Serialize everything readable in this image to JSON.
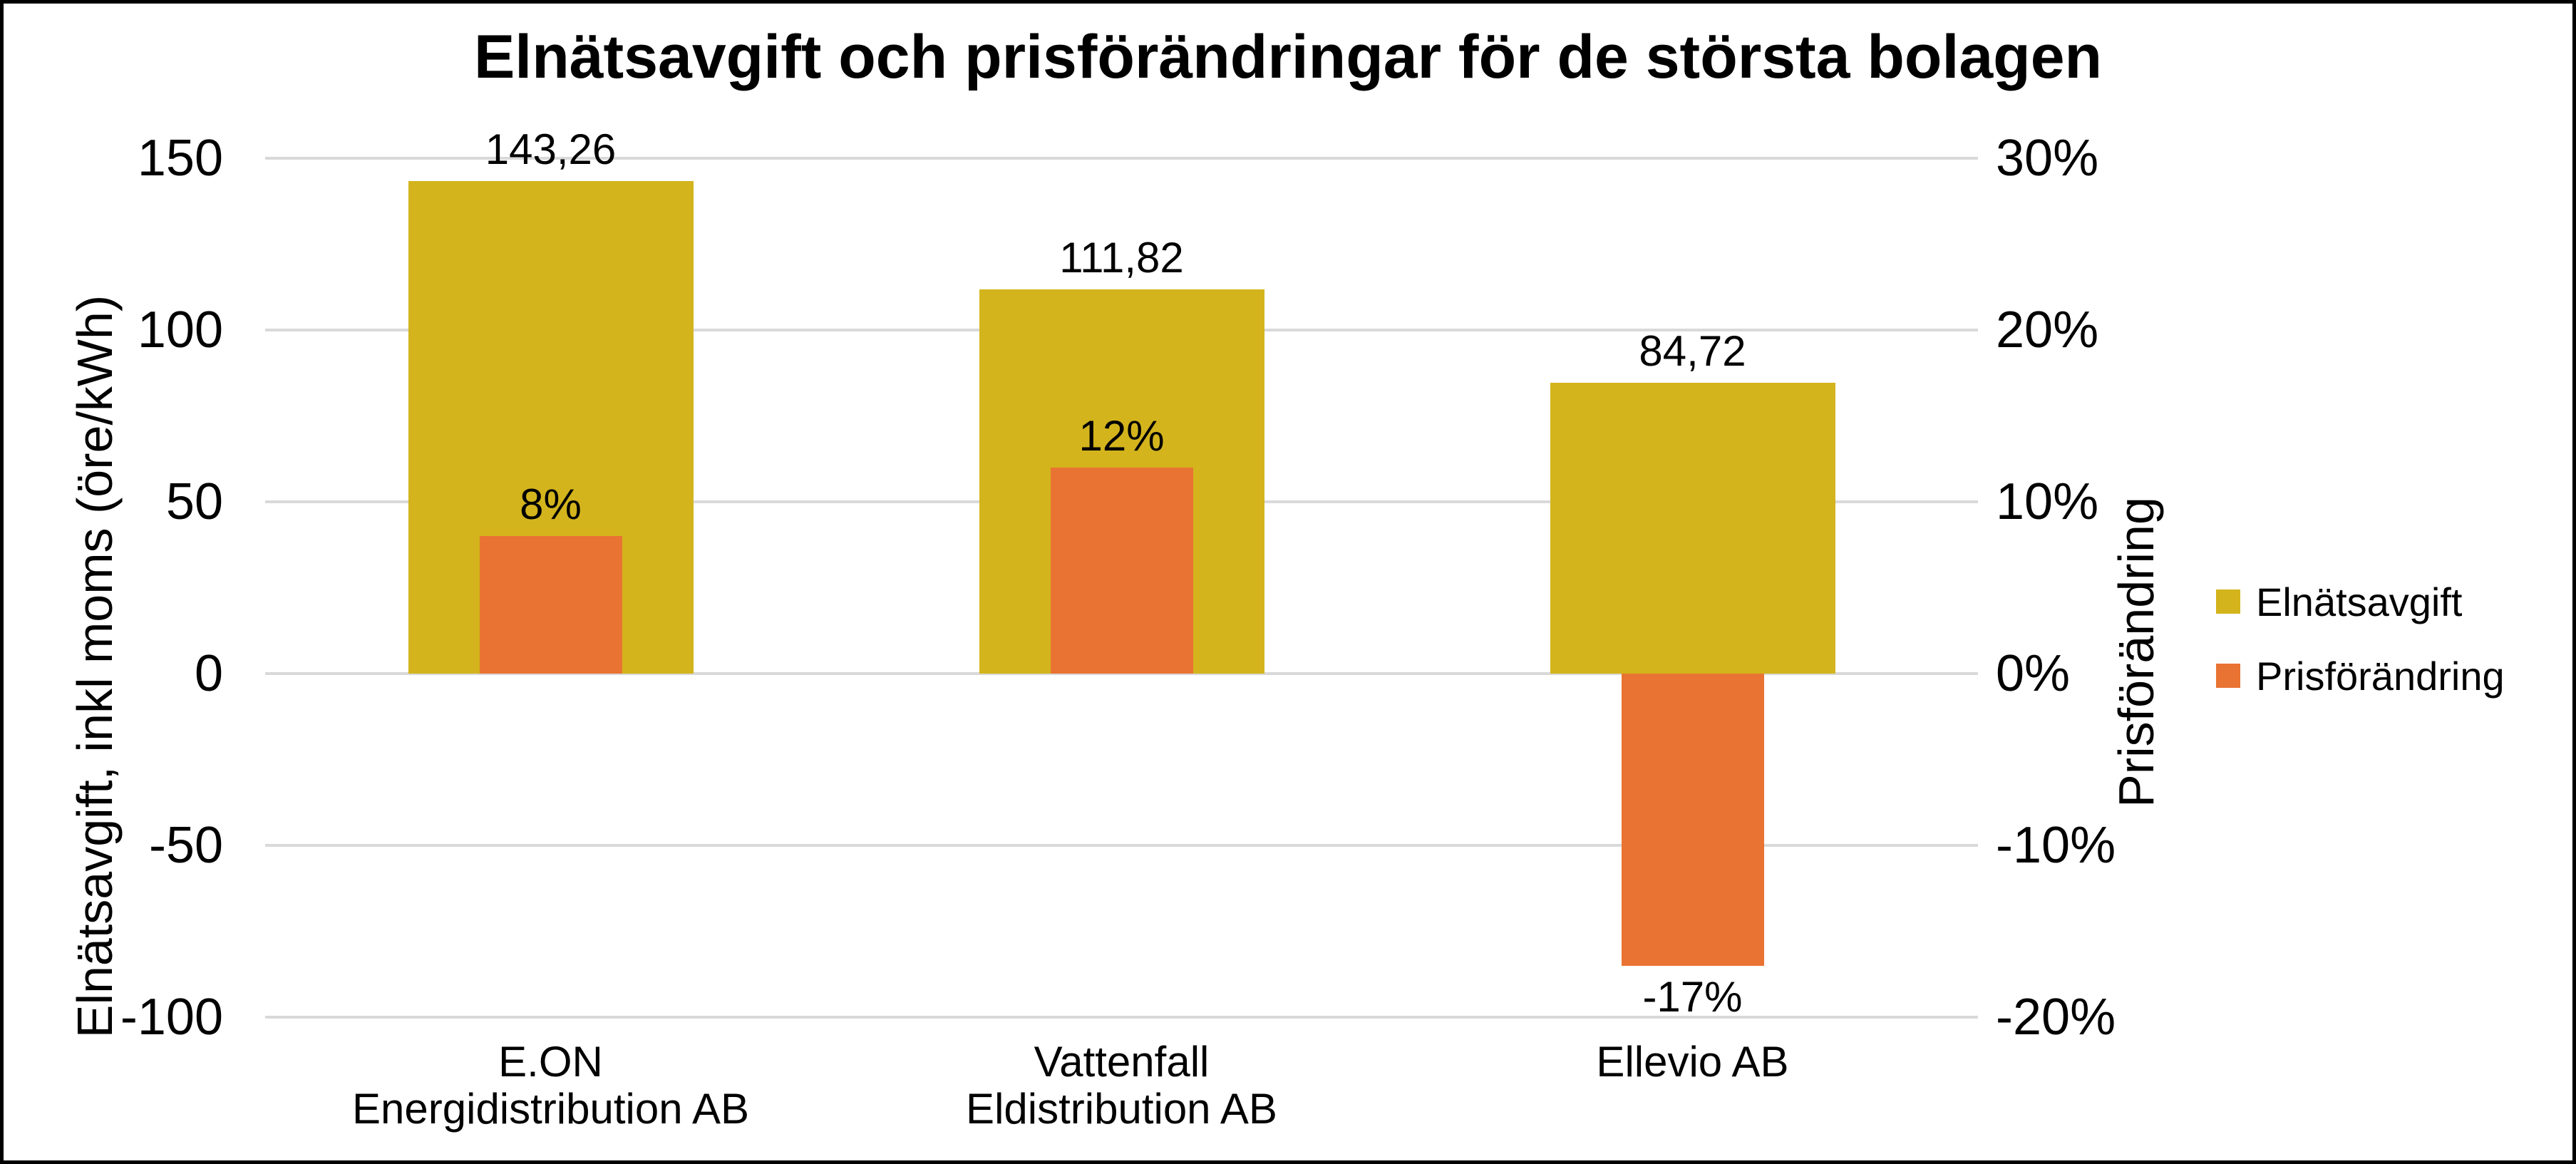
{
  "title": "Elnätsavgift och prisförändringar för de största bolagen",
  "left_axis": {
    "title": "Elnätsavgift, inkl moms (öre/kWh)",
    "ticks": [
      "150",
      "100",
      "50",
      "0",
      "-50",
      "-100"
    ],
    "max": 150,
    "min": -100
  },
  "right_axis": {
    "title": "Prisförändring",
    "ticks": [
      "30%",
      "20%",
      "10%",
      "0%",
      "-10%",
      "-20%"
    ],
    "max": 30,
    "min": -20
  },
  "legend": {
    "items": [
      {
        "label": "Elnätsavgift",
        "color": "#d3b41c"
      },
      {
        "label": "Prisförändring",
        "color": "#e97332"
      }
    ]
  },
  "colors": {
    "elnatsavgift": "#d3b41c",
    "prisforandring": "#e97332",
    "gridline": "#d9d9d9"
  },
  "chart_data": {
    "type": "bar",
    "title": "Elnätsavgift och prisförändringar för de största bolagen",
    "categories": [
      [
        "E.ON",
        "Energidistribution AB"
      ],
      [
        "Vattenfall",
        "Eldistribution AB"
      ],
      [
        "Ellevio AB"
      ]
    ],
    "series": [
      {
        "name": "Elnätsavgift",
        "axis": "left",
        "unit": "öre/kWh",
        "values": [
          143.26,
          111.82,
          84.72
        ],
        "labels": [
          "143,26",
          "111,82",
          "84,72"
        ],
        "color": "#d3b41c"
      },
      {
        "name": "Prisförändring",
        "axis": "right",
        "unit": "%",
        "values": [
          8,
          12,
          -17
        ],
        "labels": [
          "8%",
          "12%",
          "-17%"
        ],
        "color": "#e97332"
      }
    ],
    "left_ylim": [
      -100,
      150
    ],
    "right_ylim": [
      -20,
      30
    ],
    "grid": true,
    "gridline_step_left": 50,
    "gridline_step_right": 10,
    "legend_position": "right"
  }
}
